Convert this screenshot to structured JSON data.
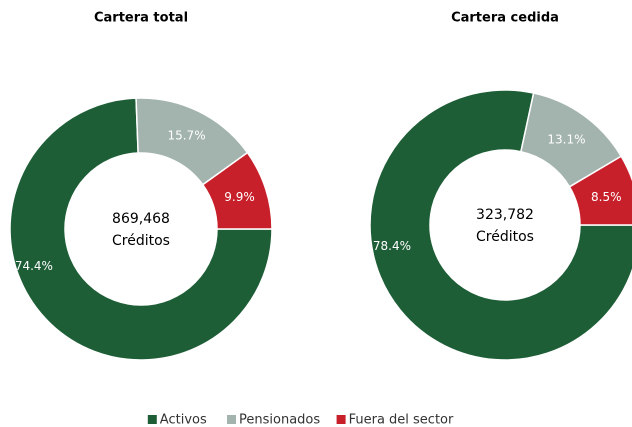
{
  "chart_data": [
    {
      "type": "donut",
      "title": "Cartera total",
      "categories": [
        "Activos",
        "Pensionados",
        "Fuera del sector"
      ],
      "values": [
        74.4,
        15.7,
        9.9
      ],
      "value_labels": [
        "74.4%",
        "15.7%",
        "9.9%"
      ],
      "colors": [
        "#1e5e37",
        "#a3b3ae",
        "#c8202a"
      ],
      "annotations": [
        "869,468",
        "Créditos"
      ]
    },
    {
      "type": "donut",
      "title": "Cartera cedida",
      "categories": [
        "Activos",
        "Pensionados",
        "Fuera del sector"
      ],
      "values": [
        78.4,
        13.1,
        8.5
      ],
      "value_labels": [
        "78.4%",
        "13.1%",
        "8.5%"
      ],
      "colors": [
        "#1e5e37",
        "#a3b3ae",
        "#c8202a"
      ],
      "annotations": [
        "323,782",
        "Créditos"
      ]
    }
  ]
}
